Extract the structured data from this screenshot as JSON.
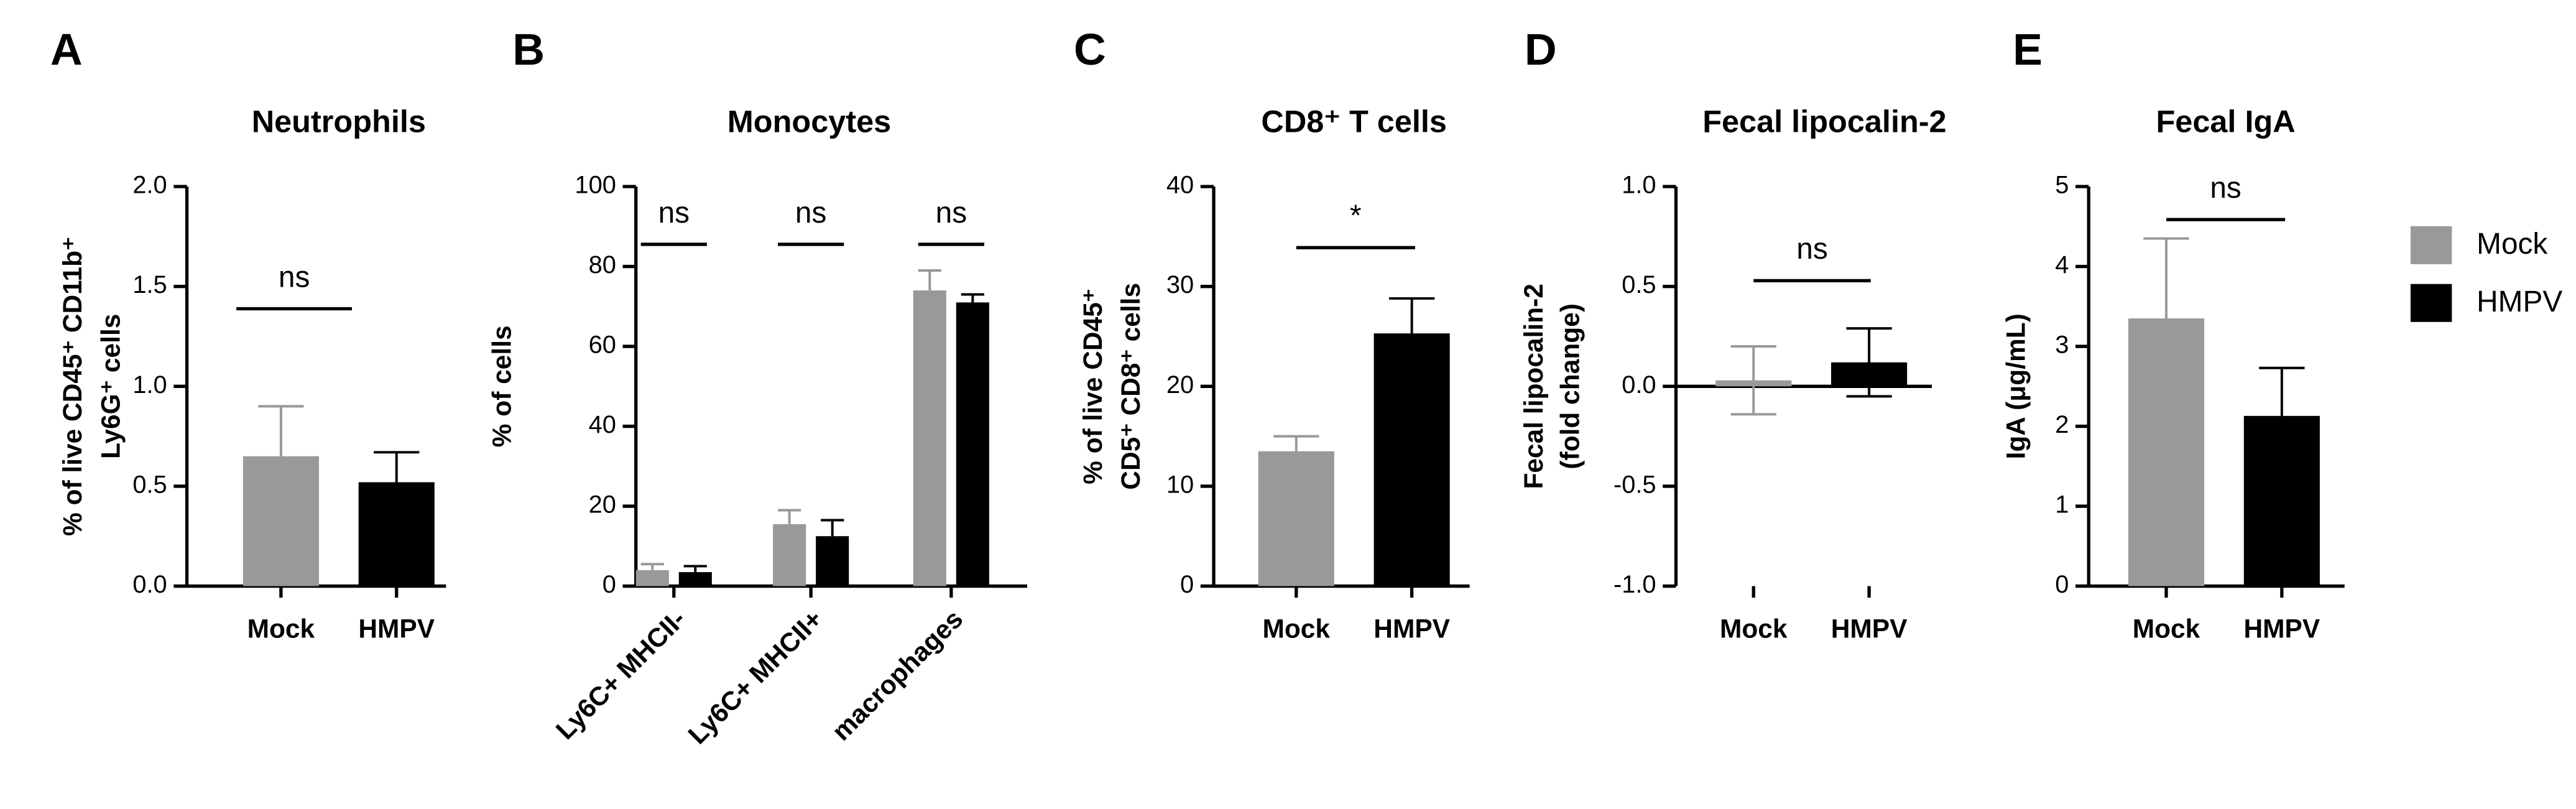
{
  "chart_data": [
    {
      "type": "bar",
      "panel": "A",
      "title": "Neutrophils",
      "ylabel": [
        "% of  live CD45⁺ CD11b⁺",
        "Ly6G⁺ cells"
      ],
      "categories": [
        "Mock",
        "HMPV"
      ],
      "values": [
        0.65,
        0.52
      ],
      "errors": [
        0.25,
        0.15
      ],
      "colors": [
        "#999999",
        "#000000"
      ],
      "error_bars": "upper",
      "ylim": [
        0,
        2
      ],
      "yticks": [
        {
          "value": 0,
          "label": "0.0"
        },
        0.5,
        {
          "value": 1,
          "label": "1.0"
        },
        1.5,
        {
          "value": 2,
          "label": "2.0"
        }
      ],
      "annotations": [
        "ns"
      ]
    },
    {
      "type": "grouped_bar",
      "panel": "B",
      "title": "Monocytes",
      "ylabel": [
        "% of cells"
      ],
      "categories": [
        "Ly6C+ MHCII-",
        "Ly6C+ MHCII+",
        "macrophages"
      ],
      "series": [
        {
          "name": "Mock",
          "color": "#999999",
          "values": [
            4,
            15.5,
            74
          ],
          "errors": [
            1.5,
            3.5,
            5
          ]
        },
        {
          "name": "HMPV",
          "color": "#000000",
          "values": [
            3.5,
            12.5,
            71
          ],
          "errors": [
            1.5,
            4,
            2
          ]
        }
      ],
      "error_bars": "upper",
      "ylim": [
        0,
        100
      ],
      "yticks": [
        0,
        20,
        40,
        60,
        80,
        100
      ],
      "annotations": [
        "ns",
        "ns",
        "ns"
      ]
    },
    {
      "type": "bar",
      "panel": "C",
      "title": "CD8⁺ T cells",
      "ylabel": [
        "% of live CD45⁺",
        "CD5⁺ CD8⁺ cells"
      ],
      "categories": [
        "Mock",
        "HMPV"
      ],
      "values": [
        13.5,
        25.3
      ],
      "errors": [
        1.5,
        3.5
      ],
      "colors": [
        "#999999",
        "#000000"
      ],
      "error_bars": "upper",
      "ylim": [
        0,
        40
      ],
      "yticks": [
        0,
        10,
        20,
        30,
        40
      ],
      "annotations": [
        "*"
      ]
    },
    {
      "type": "bar",
      "panel": "D",
      "title": "Fecal lipocalin-2",
      "ylabel": [
        "Fecal lipocalin-2",
        "(fold change)"
      ],
      "categories": [
        "Mock",
        "HMPV"
      ],
      "values": [
        0.03,
        0.12
      ],
      "errors": [
        0.17,
        0.17
      ],
      "colors": [
        "#999999",
        "#000000"
      ],
      "error_bars": "both",
      "ylim": [
        -1,
        1
      ],
      "yticks": [
        {
          "value": -1,
          "label": "-1.0"
        },
        -0.5,
        {
          "value": 0,
          "label": "0.0"
        },
        0.5,
        {
          "value": 1,
          "label": "1.0"
        }
      ],
      "annotations": [
        "ns"
      ]
    },
    {
      "type": "bar",
      "panel": "E",
      "title": "Fecal IgA",
      "ylabel": [
        "IgA (μg/mL)"
      ],
      "categories": [
        "Mock",
        "HMPV"
      ],
      "values": [
        3.35,
        2.13
      ],
      "errors": [
        1.0,
        0.6
      ],
      "colors": [
        "#999999",
        "#000000"
      ],
      "error_bars": "upper",
      "ylim": [
        0,
        5
      ],
      "yticks": [
        0,
        1,
        2,
        3,
        4,
        5
      ],
      "annotations": [
        "ns"
      ]
    }
  ]
}
